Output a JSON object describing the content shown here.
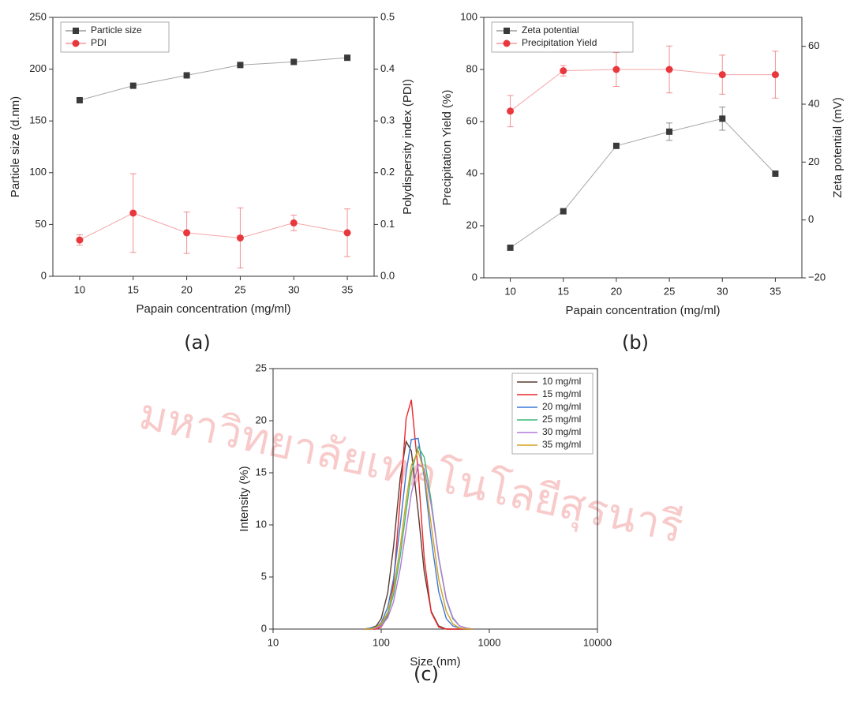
{
  "watermark": "มหาวิทยาลัยเทคโนโลยีสุรนารี",
  "chart_data": [
    {
      "type": "line",
      "panel_label": "(a)",
      "xlabel": "Papain concentration (mg/ml)",
      "ylabel": "Particle size (d.nm)",
      "y2label": "Polydispersity index (PDI)",
      "x": [
        10,
        15,
        20,
        25,
        30,
        35
      ],
      "xlim": [
        7.5,
        37.5
      ],
      "xticks": [
        10,
        15,
        20,
        25,
        30,
        35
      ],
      "ylim": [
        0,
        250
      ],
      "yticks": [
        0,
        50,
        100,
        150,
        200,
        250
      ],
      "y2lim": [
        0,
        0.5
      ],
      "y2ticks": [
        {
          "value": 0,
          "label": "0.0"
        },
        0.1,
        0.2,
        0.3,
        0.4,
        0.5
      ],
      "legend": "upper left",
      "series": [
        {
          "name": "Particle size",
          "color": "#3a3a3a",
          "marker": "square",
          "values": [
            170,
            184,
            194,
            204,
            207,
            211
          ]
        },
        {
          "name": "PDI",
          "color": "#e8383d",
          "marker": "circle",
          "axis": "y2",
          "values": [
            0.07,
            0.122,
            0.084,
            0.074,
            0.103,
            0.084
          ],
          "errors": [
            0.01,
            0.076,
            0.04,
            0.058,
            0.015,
            0.046
          ]
        }
      ]
    },
    {
      "type": "line",
      "panel_label": "(b)",
      "xlabel": "Papain concentration (mg/ml)",
      "ylabel": "Precipitation Yield (%)",
      "y2label": "Zeta potential (mV)",
      "x": [
        10,
        15,
        20,
        25,
        30,
        35
      ],
      "xlim": [
        7.5,
        37.5
      ],
      "xticks": [
        10,
        15,
        20,
        25,
        30,
        35
      ],
      "ylim": [
        0,
        100
      ],
      "yticks": [
        0,
        20,
        40,
        60,
        80,
        100
      ],
      "y2lim": [
        -20,
        70
      ],
      "y2ticks": [
        {
          "value": -20,
          "label": "−20"
        },
        0,
        20,
        40,
        60
      ],
      "legend": "upper left",
      "series": [
        {
          "name": "Zeta potential",
          "color": "#3a3a3a",
          "marker": "square",
          "axis": "y2",
          "values": [
            -9.6,
            3,
            25.6,
            30.5,
            35,
            16
          ],
          "errors": [
            0,
            0,
            0,
            3,
            4,
            0
          ]
        },
        {
          "name": "Precipitation Yield",
          "color": "#e8383d",
          "marker": "circle",
          "values": [
            64,
            79.5,
            80,
            80,
            78,
            78
          ],
          "errors": [
            6,
            2,
            6.5,
            9,
            7.5,
            9
          ]
        }
      ]
    },
    {
      "type": "line",
      "panel_label": "(c)",
      "xlabel": "Size (nm)",
      "ylabel": "Intensity (%)",
      "xscale": "log",
      "x": [
        70,
        80,
        90,
        100,
        115,
        130,
        150,
        170,
        190,
        220,
        250,
        290,
        340,
        400,
        460,
        530,
        610,
        700
      ],
      "xlim": [
        10,
        10000
      ],
      "xticks": [
        10,
        100,
        1000,
        10000
      ],
      "ylim": [
        0,
        25
      ],
      "yticks": [
        0,
        5,
        10,
        15,
        20,
        25
      ],
      "legend": "upper right",
      "series": [
        {
          "name": "10 mg/ml",
          "color": "#5b3b30",
          "values": [
            0,
            0.1,
            0.3,
            1,
            3.5,
            7.9,
            14.5,
            18,
            17.1,
            11.2,
            5.5,
            1.7,
            0.3,
            0,
            0,
            0,
            0,
            0
          ]
        },
        {
          "name": "15 mg/ml",
          "color": "#e8282d",
          "values": [
            0,
            0,
            0,
            0.2,
            1.2,
            4.4,
            12.5,
            20.2,
            22,
            15.1,
            6.8,
            1.6,
            0.2,
            0,
            0,
            0,
            0,
            0
          ]
        },
        {
          "name": "20 mg/ml",
          "color": "#3a78d6",
          "values": [
            0,
            0.1,
            0.2,
            0.6,
            2.1,
            4.8,
            10,
            15,
            18.2,
            18.3,
            14.6,
            8.7,
            3.6,
            1,
            0.3,
            0.1,
            0,
            0
          ]
        },
        {
          "name": "25 mg/ml",
          "color": "#3cb878",
          "values": [
            0,
            0,
            0.2,
            0.4,
            1.4,
            3.3,
            7,
            11.3,
            15,
            17.5,
            16.5,
            12.3,
            6.8,
            2.8,
            1,
            0.3,
            0.1,
            0
          ]
        },
        {
          "name": "30 mg/ml",
          "color": "#b07ad8",
          "values": [
            0,
            0,
            0.1,
            0.3,
            1.1,
            2.6,
            5.8,
            9.6,
            13,
            15.8,
            15.4,
            11.9,
            6.9,
            2.9,
            1.1,
            0.3,
            0.1,
            0
          ]
        },
        {
          "name": "35 mg/ml",
          "color": "#d4a020",
          "values": [
            0,
            0,
            0.2,
            0.5,
            1.6,
            3.8,
            7.9,
            12.3,
            15.7,
            17.1,
            15,
            10,
            4.8,
            1.7,
            0.5,
            0.1,
            0,
            0
          ]
        }
      ]
    }
  ]
}
